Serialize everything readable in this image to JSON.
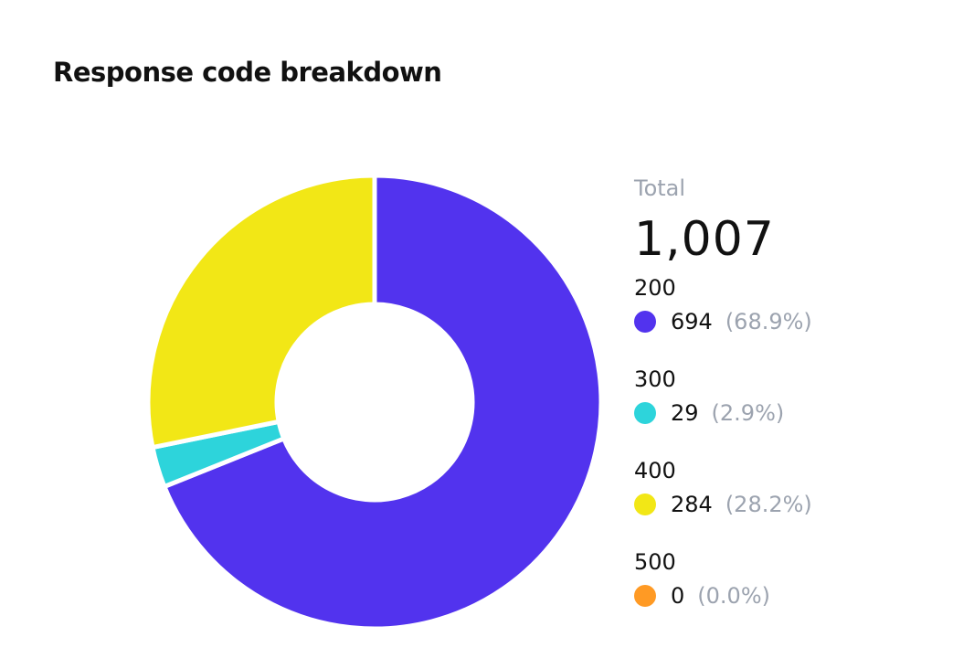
{
  "chart_data": {
    "type": "pie",
    "variant": "donut",
    "title": "Response code breakdown",
    "total_label": "Total",
    "total_value": "1,007",
    "slices": [
      {
        "label": "200",
        "value": 694,
        "value_text": "694",
        "percent_text": "(68.9%)",
        "color": "#5233ee"
      },
      {
        "label": "300",
        "value": 29,
        "value_text": "29",
        "percent_text": "(2.9%)",
        "color": "#2dd4db"
      },
      {
        "label": "400",
        "value": 284,
        "value_text": "284",
        "percent_text": "(28.2%)",
        "color": "#f2e716"
      },
      {
        "label": "500",
        "value": 0,
        "value_text": "0",
        "percent_text": "(0.0%)",
        "color": "#ff9a24"
      }
    ],
    "legend_position": "right"
  }
}
